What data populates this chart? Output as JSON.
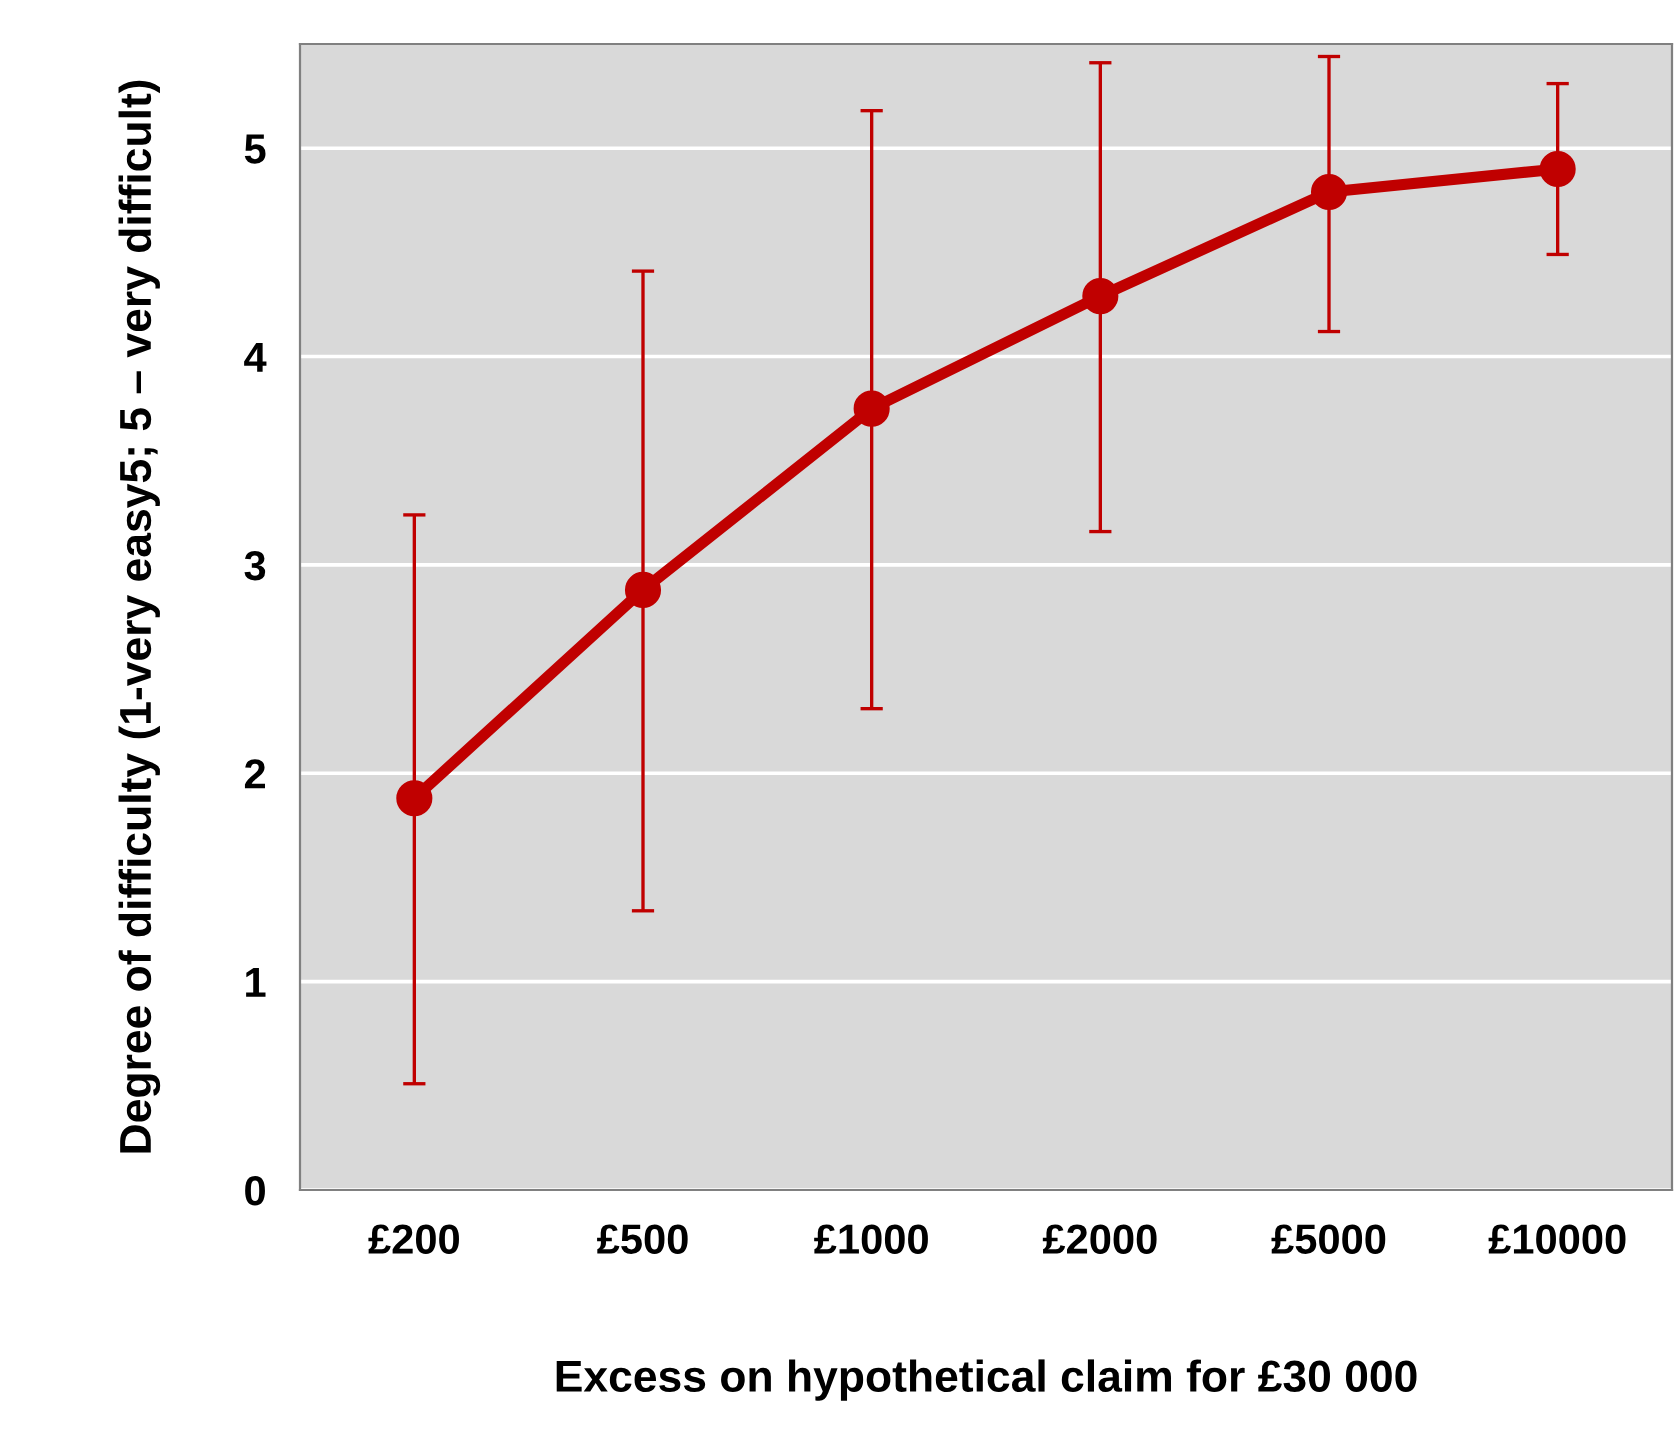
{
  "chart_data": {
    "type": "line",
    "xlabel": "Excess on hypothetical claim for £30 000",
    "ylabel": "Degree of difficulty (1-very easy5; 5 – very difficult)",
    "categories": [
      "£200",
      "£500",
      "£1000",
      "£2000",
      "£5000",
      "£10000"
    ],
    "series": [
      {
        "color": "#c00000",
        "values": [
          1.88,
          2.88,
          3.75,
          4.29,
          4.79,
          4.9
        ],
        "errors": [
          [
            0.51,
            3.24
          ],
          [
            1.34,
            4.41
          ],
          [
            2.31,
            5.18
          ],
          [
            3.16,
            5.41
          ],
          [
            4.12,
            5.44
          ],
          [
            4.49,
            5.31
          ]
        ]
      }
    ],
    "ylim": [
      0,
      5.5
    ],
    "yticks": [
      0,
      1,
      2,
      3,
      4,
      5
    ],
    "grid": "y",
    "marker": "circle",
    "line_style": "solid"
  }
}
